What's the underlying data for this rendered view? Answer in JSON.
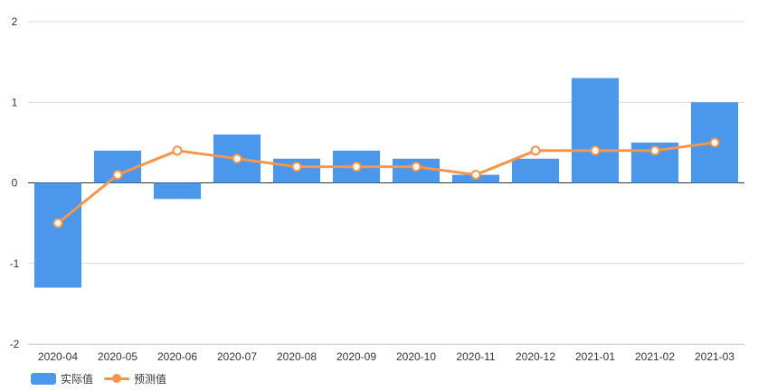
{
  "chart_data": {
    "type": "bar",
    "categories": [
      "2020-04",
      "2020-05",
      "2020-06",
      "2020-07",
      "2020-08",
      "2020-09",
      "2020-10",
      "2020-11",
      "2020-12",
      "2021-01",
      "2021-02",
      "2021-03"
    ],
    "series": [
      {
        "name": "实际值",
        "type": "bar",
        "color": "#4a97ec",
        "values": [
          -1.3,
          0.4,
          -0.2,
          0.6,
          0.3,
          0.4,
          0.3,
          0.1,
          0.3,
          1.3,
          0.5,
          1.0
        ]
      },
      {
        "name": "预测值",
        "type": "line",
        "color": "#f7954a",
        "values": [
          -0.5,
          0.1,
          0.4,
          0.3,
          0.2,
          0.2,
          0.2,
          0.1,
          0.4,
          0.4,
          0.4,
          0.5
        ]
      }
    ],
    "y_ticks": [
      "2",
      "1",
      "0",
      "-1",
      "-2"
    ],
    "ylim": [
      -2,
      2
    ],
    "grid": true,
    "legend_position": "bottom-left"
  },
  "legend": {
    "actual_label": "实际值",
    "forecast_label": "预测值"
  }
}
